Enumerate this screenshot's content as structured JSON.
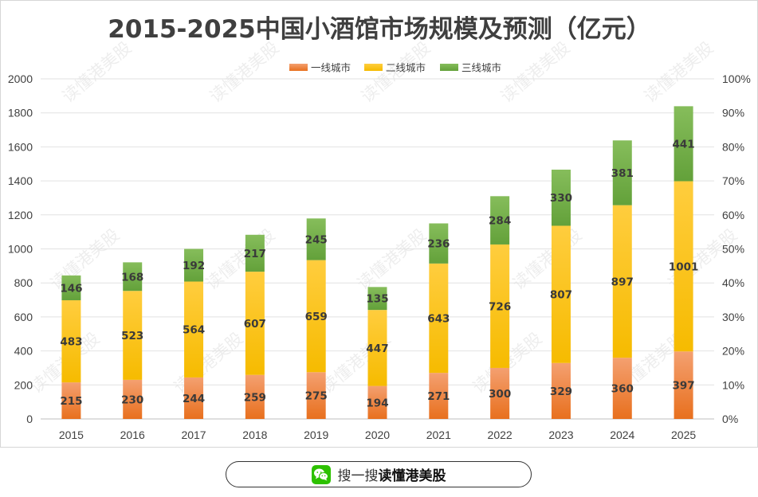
{
  "chart_data": {
    "type": "bar",
    "stacked": true,
    "title": "2015-2025中国小酒馆市场规模及预测（亿元）",
    "categories": [
      "2015",
      "2016",
      "2017",
      "2018",
      "2019",
      "2020",
      "2021",
      "2022",
      "2023",
      "2024",
      "2025"
    ],
    "series": [
      {
        "name": "一线城市",
        "color": "#ed7d31",
        "values": [
          215,
          230,
          244,
          259,
          275,
          194,
          271,
          300,
          329,
          360,
          397
        ]
      },
      {
        "name": "二线城市",
        "color": "#ffc000",
        "values": [
          483,
          523,
          564,
          607,
          659,
          447,
          643,
          726,
          807,
          897,
          1001
        ]
      },
      {
        "name": "三线城市",
        "color": "#70ad47",
        "values": [
          146,
          168,
          192,
          217,
          245,
          135,
          236,
          284,
          330,
          381,
          441
        ]
      }
    ],
    "ylim": [
      0,
      2000
    ],
    "yticks": [
      "0",
      "200",
      "400",
      "600",
      "800",
      "1000",
      "1200",
      "1400",
      "1600",
      "1800",
      "2000"
    ],
    "y2ticks": [
      "0%",
      "10%",
      "20%",
      "30%",
      "40%",
      "50%",
      "60%",
      "70%",
      "80%",
      "90%",
      "100%"
    ],
    "grid": true,
    "legend_position": "top-center"
  },
  "watermark": "读懂港美股",
  "footer": {
    "icon": "wechat-icon",
    "prefix": "搜一搜",
    "name": "读懂港美股"
  }
}
